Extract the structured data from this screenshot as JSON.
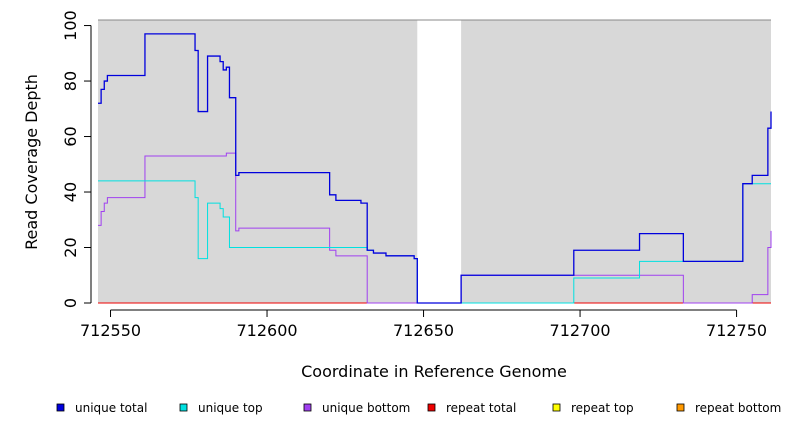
{
  "chart_data": {
    "type": "line",
    "title": "",
    "xlabel": "Coordinate in Reference Genome",
    "ylabel": "Read Coverage Depth",
    "xlim": [
      712546,
      712761
    ],
    "ylim": [
      0,
      102
    ],
    "x_ticks": [
      712550,
      712600,
      712650,
      712700,
      712750
    ],
    "y_ticks": [
      0,
      20,
      40,
      60,
      80,
      100
    ],
    "background_bands": [
      [
        712546,
        712648
      ],
      [
        712662,
        712761
      ]
    ],
    "band_color": "#d8d8d8",
    "legend_position": "bottom",
    "series": [
      {
        "name": "unique total",
        "color": "#0000dd",
        "step": true,
        "points": [
          [
            712546,
            72
          ],
          [
            712547,
            77
          ],
          [
            712548,
            80
          ],
          [
            712549,
            82
          ],
          [
            712561,
            97
          ],
          [
            712577,
            91
          ],
          [
            712578,
            69
          ],
          [
            712581,
            89
          ],
          [
            712585,
            87
          ],
          [
            712586,
            84
          ],
          [
            712587,
            85
          ],
          [
            712588,
            74
          ],
          [
            712590,
            46
          ],
          [
            712591,
            47
          ],
          [
            712620,
            39
          ],
          [
            712622,
            37
          ],
          [
            712630,
            36
          ],
          [
            712632,
            19
          ],
          [
            712634,
            18
          ],
          [
            712638,
            17
          ],
          [
            712647,
            16
          ],
          [
            712648,
            0
          ],
          [
            712662,
            10
          ],
          [
            712698,
            19
          ],
          [
            712719,
            25
          ],
          [
            712733,
            15
          ],
          [
            712752,
            43
          ],
          [
            712755,
            46
          ],
          [
            712760,
            63
          ],
          [
            712761,
            69
          ]
        ]
      },
      {
        "name": "unique top",
        "color": "#00e0e0",
        "step": true,
        "points": [
          [
            712546,
            44
          ],
          [
            712577,
            38
          ],
          [
            712578,
            16
          ],
          [
            712581,
            36
          ],
          [
            712585,
            34
          ],
          [
            712586,
            31
          ],
          [
            712588,
            20
          ],
          [
            712630,
            20
          ],
          [
            712632,
            19
          ],
          [
            712634,
            18
          ],
          [
            712638,
            17
          ],
          [
            712647,
            16
          ],
          [
            712648,
            0
          ],
          [
            712698,
            9
          ],
          [
            712719,
            15
          ],
          [
            712733,
            15
          ],
          [
            712752,
            43
          ],
          [
            712761,
            43
          ]
        ]
      },
      {
        "name": "unique bottom",
        "color": "#a040f0",
        "step": true,
        "points": [
          [
            712546,
            28
          ],
          [
            712547,
            33
          ],
          [
            712548,
            36
          ],
          [
            712549,
            38
          ],
          [
            712561,
            53
          ],
          [
            712587,
            54
          ],
          [
            712590,
            26
          ],
          [
            712591,
            27
          ],
          [
            712620,
            19
          ],
          [
            712622,
            17
          ],
          [
            712632,
            0
          ],
          [
            712662,
            10
          ],
          [
            712733,
            0
          ],
          [
            712755,
            3
          ],
          [
            712760,
            20
          ],
          [
            712761,
            26
          ]
        ]
      },
      {
        "name": "repeat total",
        "color": "#ee0000",
        "step": true,
        "points": [
          [
            712546,
            0
          ],
          [
            712761,
            0
          ]
        ]
      },
      {
        "name": "repeat top",
        "color": "#ffff00",
        "step": true,
        "points": [
          [
            712546,
            0
          ],
          [
            712761,
            0
          ]
        ]
      },
      {
        "name": "repeat bottom",
        "color": "#ff9900",
        "step": true,
        "points": [
          [
            712546,
            0
          ],
          [
            712761,
            0
          ]
        ]
      }
    ]
  }
}
